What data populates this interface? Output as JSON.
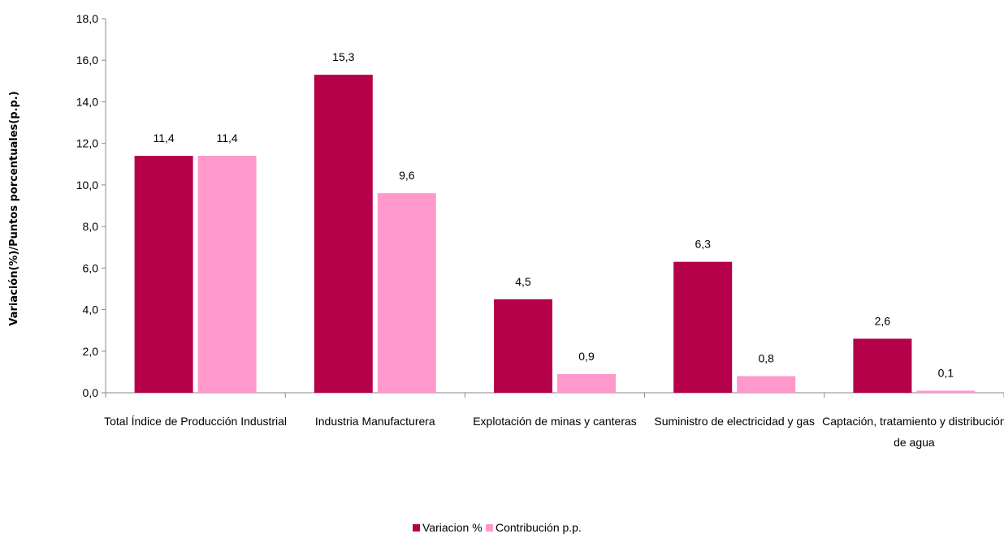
{
  "chart_data": {
    "type": "bar",
    "title": "",
    "xlabel": "",
    "ylabel": "Variación(%)/Puntos   porcentuales(p.p.)",
    "ylim": [
      0,
      18
    ],
    "yticks": [
      "0,0",
      "2,0",
      "4,0",
      "6,0",
      "8,0",
      "10,0",
      "12,0",
      "14,0",
      "16,0",
      "18,0"
    ],
    "categories": [
      [
        "Total Índice de Producción Industrial"
      ],
      [
        "Industria Manufacturera"
      ],
      [
        "Explotación de minas y canteras"
      ],
      [
        "Suministro de electricidad y gas"
      ],
      [
        "Captación, tratamiento y distribución",
        "de agua"
      ]
    ],
    "series": [
      {
        "name": "Variacion %",
        "color": "#b5004a",
        "values": [
          11.4,
          15.3,
          4.5,
          6.3,
          2.6
        ],
        "labels": [
          "11,4",
          "15,3",
          "4,5",
          "6,3",
          "2,6"
        ]
      },
      {
        "name": "Contribución p.p.",
        "color": "#ff99cc",
        "values": [
          11.4,
          9.6,
          0.9,
          0.8,
          0.1
        ],
        "labels": [
          "11,4",
          "9,6",
          "0,9",
          "0,8",
          "0,1"
        ]
      }
    ],
    "legend_position": "bottom",
    "grid": false
  }
}
